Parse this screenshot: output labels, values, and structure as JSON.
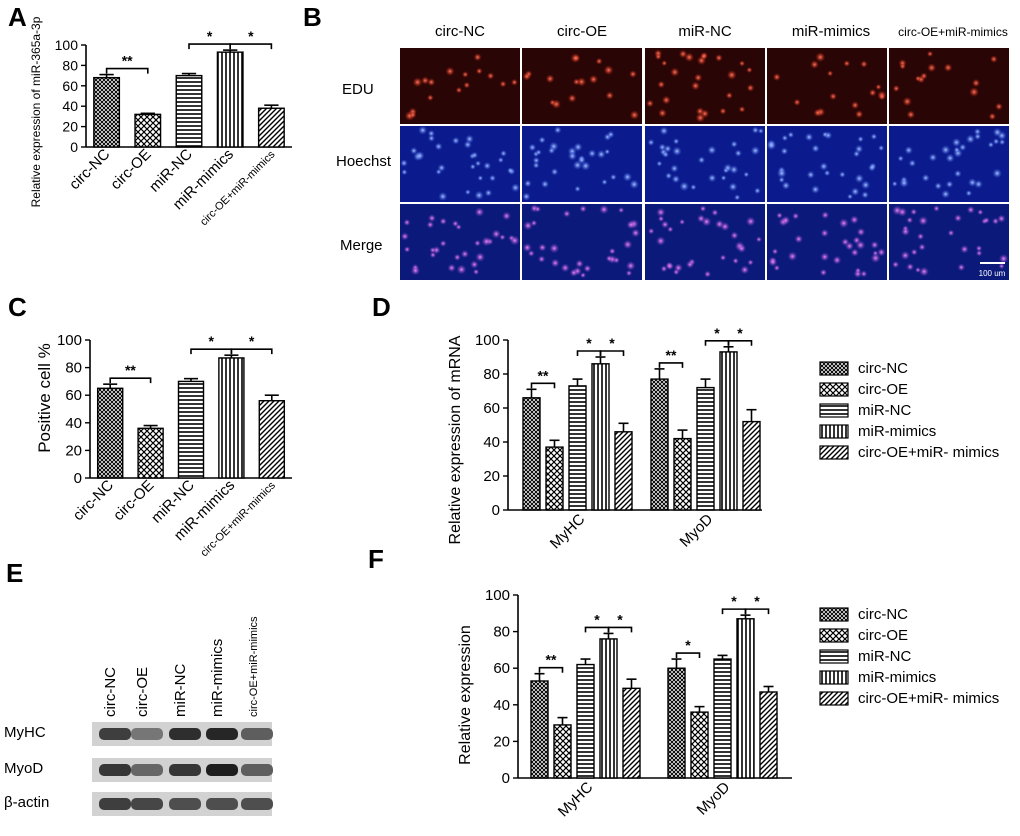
{
  "panels": {
    "a": {
      "letter": "A"
    },
    "b": {
      "letter": "B"
    },
    "c": {
      "letter": "C"
    },
    "d": {
      "letter": "D"
    },
    "e": {
      "letter": "E"
    },
    "f": {
      "letter": "F"
    }
  },
  "microscopy": {
    "columns": [
      "circ-NC",
      "circ-OE",
      "miR-NC",
      "miR-mimics",
      "circ-OE+miR-mimics"
    ],
    "rows": [
      "EDU",
      "Hoechst",
      "Merge"
    ],
    "scale_bar_label": "100 um",
    "colors": {
      "edu_bg": "#2a0505",
      "edu_dot": "#ff3a22",
      "hoechst_bg": "#0b1a8c",
      "hoechst_dot": "#5d8cff",
      "merge_bg": "#0b1a7a",
      "merge_dot": "#d44bd8"
    }
  },
  "western": {
    "lanes": [
      "circ-NC",
      "circ-OE",
      "miR-NC",
      "miR-mimics",
      "circ-OE+miR-mimics"
    ],
    "proteins": [
      {
        "name": "MyHC",
        "intensity": [
          0.8,
          0.45,
          0.9,
          0.95,
          0.6
        ]
      },
      {
        "name": "MyoD",
        "intensity": [
          0.85,
          0.55,
          0.85,
          1.0,
          0.6
        ]
      },
      {
        "name": "β-actin",
        "intensity": [
          0.8,
          0.75,
          0.7,
          0.7,
          0.7
        ]
      }
    ]
  },
  "chart_data": [
    {
      "id": "A",
      "type": "bar",
      "categories": [
        "circ-NC",
        "circ-OE",
        "miR-NC",
        "miR-mimics",
        "circ-OE+miR-mimics"
      ],
      "values": [
        68,
        32,
        70,
        93,
        38
      ],
      "errors": [
        3,
        1,
        2,
        2,
        3
      ],
      "ylabel": "Relative expression of miR-365a-3p",
      "ylim": [
        0,
        100
      ],
      "yticks": [
        0,
        20,
        40,
        60,
        80,
        100
      ],
      "significance": [
        {
          "from": 0,
          "to": 1,
          "label": "**"
        },
        {
          "from": 2,
          "to": 3,
          "label": "*"
        },
        {
          "from": 3,
          "to": 4,
          "label": "*"
        }
      ]
    },
    {
      "id": "C",
      "type": "bar",
      "categories": [
        "circ-NC",
        "circ-OE",
        "miR-NC",
        "miR-mimics",
        "circ-OE+miR-mimics"
      ],
      "values": [
        65,
        36,
        70,
        87,
        56
      ],
      "errors": [
        3,
        2,
        2,
        2,
        4
      ],
      "ylabel": "Positive cell %",
      "ylim": [
        0,
        100
      ],
      "yticks": [
        0,
        20,
        40,
        60,
        80,
        100
      ],
      "significance": [
        {
          "from": 0,
          "to": 1,
          "label": "**"
        },
        {
          "from": 2,
          "to": 3,
          "label": "*"
        },
        {
          "from": 3,
          "to": 4,
          "label": "*"
        }
      ]
    },
    {
      "id": "D",
      "type": "bar",
      "categories": [
        "MyHC",
        "MyoD"
      ],
      "series": [
        {
          "name": "circ-NC",
          "values": [
            66,
            77
          ],
          "errors": [
            5,
            6
          ]
        },
        {
          "name": "circ-OE",
          "values": [
            37,
            42
          ],
          "errors": [
            4,
            5
          ]
        },
        {
          "name": "miR-NC",
          "values": [
            73,
            72
          ],
          "errors": [
            4,
            5
          ]
        },
        {
          "name": "miR-mimics",
          "values": [
            86,
            93
          ],
          "errors": [
            4,
            3
          ]
        },
        {
          "name": "circ-OE+miR- mimics",
          "values": [
            46,
            52
          ],
          "errors": [
            5,
            7
          ]
        }
      ],
      "ylabel": "Relative expression of mRNA",
      "ylim": [
        0,
        100
      ],
      "yticks": [
        0,
        20,
        40,
        60,
        80,
        100
      ],
      "legend": "right",
      "significance": [
        {
          "group": 0,
          "from": 0,
          "to": 1,
          "label": "**"
        },
        {
          "group": 0,
          "from": 2,
          "to": 3,
          "label": "*"
        },
        {
          "group": 0,
          "from": 3,
          "to": 4,
          "label": "*"
        },
        {
          "group": 1,
          "from": 0,
          "to": 1,
          "label": "**"
        },
        {
          "group": 1,
          "from": 2,
          "to": 3,
          "label": "*"
        },
        {
          "group": 1,
          "from": 3,
          "to": 4,
          "label": "*"
        }
      ]
    },
    {
      "id": "F",
      "type": "bar",
      "categories": [
        "MyHC",
        "MyoD"
      ],
      "series": [
        {
          "name": "circ-NC",
          "values": [
            53,
            60
          ],
          "errors": [
            4,
            5
          ]
        },
        {
          "name": "circ-OE",
          "values": [
            29,
            36
          ],
          "errors": [
            4,
            3
          ]
        },
        {
          "name": "miR-NC",
          "values": [
            62,
            65
          ],
          "errors": [
            3,
            2
          ]
        },
        {
          "name": "miR-mimics",
          "values": [
            76,
            87
          ],
          "errors": [
            3,
            2
          ]
        },
        {
          "name": "circ-OE+miR- mimics",
          "values": [
            49,
            47
          ],
          "errors": [
            5,
            3
          ]
        }
      ],
      "ylabel": "Relative expression",
      "ylim": [
        0,
        100
      ],
      "yticks": [
        0,
        20,
        40,
        60,
        80,
        100
      ],
      "legend": "right",
      "significance": [
        {
          "group": 0,
          "from": 0,
          "to": 1,
          "label": "**"
        },
        {
          "group": 0,
          "from": 2,
          "to": 3,
          "label": "*"
        },
        {
          "group": 0,
          "from": 3,
          "to": 4,
          "label": "*"
        },
        {
          "group": 1,
          "from": 0,
          "to": 1,
          "label": "*"
        },
        {
          "group": 1,
          "from": 2,
          "to": 3,
          "label": "*"
        },
        {
          "group": 1,
          "from": 3,
          "to": 4,
          "label": "*"
        }
      ]
    }
  ]
}
